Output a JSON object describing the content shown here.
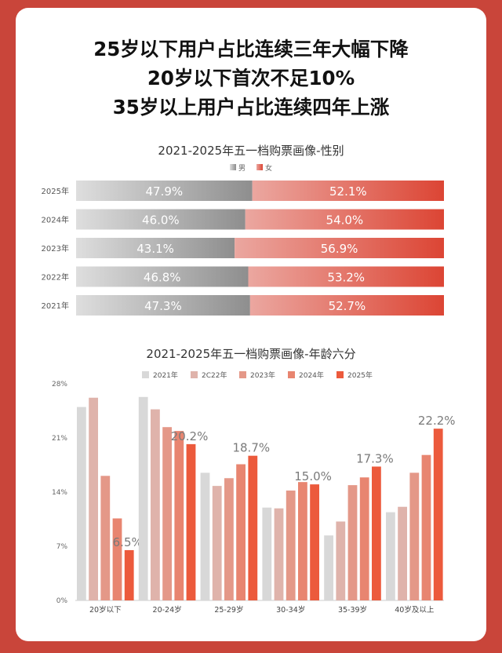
{
  "headline": [
    "25岁以下用户占比连续三年大幅下降",
    "20岁以下首次不足10%",
    "35岁以上用户占比连续四年上涨"
  ],
  "chart_data": [
    {
      "type": "bar",
      "orientation": "horizontal",
      "stacked": true,
      "percent": true,
      "title": "2021-2025年五一档购票画像-性别",
      "categories": [
        "2025年",
        "2024年",
        "2023年",
        "2022年",
        "2021年"
      ],
      "series": [
        {
          "name": "男",
          "color": "#9a9a9a",
          "values": [
            47.9,
            46.0,
            43.1,
            46.8,
            47.3
          ],
          "labels": [
            "47.9%",
            "46.0%",
            "43.1%",
            "46.8%",
            "47.3%"
          ]
        },
        {
          "name": "女",
          "color": "#e0483a",
          "values": [
            52.1,
            54.0,
            56.9,
            53.2,
            52.7
          ],
          "labels": [
            "52.1%",
            "54.0%",
            "56.9%",
            "53.2%",
            "52.7%"
          ]
        }
      ],
      "legend": "top-center"
    },
    {
      "type": "bar",
      "title": "2021-2025年五一档购票画像-年龄六分",
      "categories": [
        "20岁以下",
        "20-24岁",
        "25-29岁",
        "30-34岁",
        "35-39岁",
        "40岁及以上"
      ],
      "yticks": [
        "0%",
        "7%",
        "14%",
        "21%",
        "28%"
      ],
      "ylim": [
        0,
        28
      ],
      "grid": false,
      "legend": "top-center",
      "series": [
        {
          "name": "2021年",
          "color": "#d8d8d8",
          "values": [
            25.0,
            26.3,
            16.5,
            12.0,
            8.4,
            11.4
          ]
        },
        {
          "name": "2C22年",
          "color": "#dfb3ab",
          "values": [
            26.2,
            24.7,
            14.8,
            11.9,
            10.2,
            12.1
          ]
        },
        {
          "name": "2023年",
          "color": "#e49888",
          "values": [
            16.1,
            22.4,
            15.8,
            14.2,
            14.9,
            16.5
          ]
        },
        {
          "name": "2024年",
          "color": "#e88570",
          "values": [
            10.6,
            21.9,
            17.6,
            15.3,
            15.9,
            18.8
          ]
        },
        {
          "name": "2025年",
          "color": "#ec5a3c",
          "values": [
            6.5,
            20.2,
            18.7,
            15.0,
            17.3,
            22.2
          ]
        }
      ],
      "data_labels": [
        "6.5%",
        "20.2%",
        "18.7%",
        "15.0%",
        "17.3%",
        "22.2%"
      ]
    }
  ]
}
